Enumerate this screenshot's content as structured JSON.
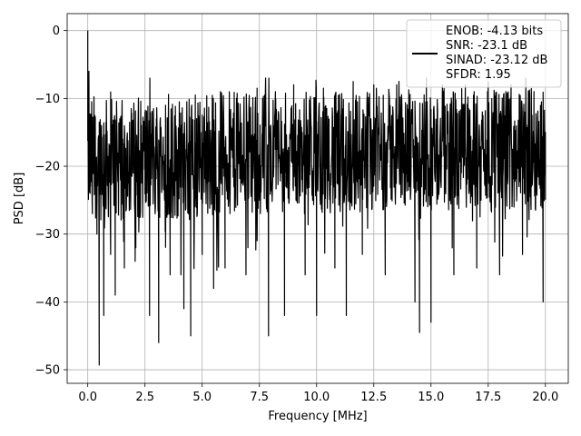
{
  "chart_data": {
    "type": "line",
    "xlabel": "Frequency [MHz]",
    "ylabel": "PSD [dB]",
    "xlim": [
      -0.9,
      21.0
    ],
    "ylim": [
      -52.0,
      2.5
    ],
    "x_ticks": [
      0.0,
      2.5,
      5.0,
      7.5,
      10.0,
      12.5,
      15.0,
      17.5,
      20.0
    ],
    "x_tick_labels": [
      "0.0",
      "2.5",
      "5.0",
      "7.5",
      "10.0",
      "12.5",
      "15.0",
      "17.5",
      "20.0"
    ],
    "y_ticks": [
      0,
      -10,
      -20,
      -30,
      -40,
      -50
    ],
    "y_tick_labels": [
      "0",
      "−10",
      "−20",
      "−30",
      "−40",
      "−50"
    ],
    "grid": true,
    "legend_position": "top-right",
    "series": [
      {
        "color": "#000000",
        "x_start": 0.0,
        "x_end": 20.0,
        "noise_floor_db": -17.5,
        "peak_db": 0.0,
        "min_db": -49.3,
        "points": [
          [
            0.0,
            0.0
          ],
          [
            0.02,
            -17.5
          ],
          [
            0.05,
            -6.0
          ],
          [
            0.1,
            -24.0
          ],
          [
            0.15,
            -14.0
          ],
          [
            0.2,
            -27.0
          ],
          [
            0.3,
            -12.5
          ],
          [
            0.4,
            -30.0
          ],
          [
            0.5,
            -49.3
          ],
          [
            0.6,
            -14.0
          ],
          [
            0.7,
            -42.0
          ],
          [
            0.8,
            -13.5
          ],
          [
            1.0,
            -33.0
          ],
          [
            1.2,
            -39.0
          ],
          [
            1.4,
            -13.0
          ],
          [
            1.6,
            -35.0
          ],
          [
            1.9,
            -11.5
          ],
          [
            2.1,
            -32.0
          ],
          [
            2.5,
            -12.0
          ],
          [
            2.7,
            -42.0
          ],
          [
            3.0,
            -13.0
          ],
          [
            3.1,
            -46.0
          ],
          [
            3.4,
            -11.0
          ],
          [
            3.6,
            -36.0
          ],
          [
            4.0,
            -10.5
          ],
          [
            4.2,
            -41.0
          ],
          [
            4.5,
            -45.0
          ],
          [
            4.7,
            -9.5
          ],
          [
            5.0,
            -33.0
          ],
          [
            5.2,
            -10.0
          ],
          [
            5.5,
            -38.0
          ],
          [
            5.8,
            -9.0
          ],
          [
            6.0,
            -35.0
          ],
          [
            6.5,
            -10.0
          ],
          [
            7.0,
            -32.0
          ],
          [
            7.4,
            -8.5
          ],
          [
            7.9,
            -45.0
          ],
          [
            8.2,
            -9.0
          ],
          [
            8.6,
            -42.0
          ],
          [
            9.0,
            -8.0
          ],
          [
            9.5,
            -36.0
          ],
          [
            10.0,
            -42.0
          ],
          [
            10.3,
            -8.5
          ],
          [
            10.8,
            -35.0
          ],
          [
            11.3,
            -42.0
          ],
          [
            11.6,
            -7.5
          ],
          [
            12.0,
            -33.0
          ],
          [
            12.5,
            -8.0
          ],
          [
            13.0,
            -36.0
          ],
          [
            13.5,
            -8.0
          ],
          [
            14.3,
            -40.0
          ],
          [
            14.5,
            -44.5
          ],
          [
            14.8,
            -7.0
          ],
          [
            15.0,
            -43.0
          ],
          [
            15.5,
            -8.0
          ],
          [
            16.0,
            -36.0
          ],
          [
            16.5,
            -8.0
          ],
          [
            17.0,
            -35.0
          ],
          [
            17.5,
            -7.5
          ],
          [
            18.0,
            -36.0
          ],
          [
            18.5,
            -8.0
          ],
          [
            19.0,
            -33.0
          ],
          [
            19.5,
            -9.0
          ],
          [
            19.9,
            -40.0
          ],
          [
            20.0,
            -15.0
          ]
        ]
      }
    ],
    "legend": {
      "lines": [
        "ENOB: -4.13 bits",
        "SNR: -23.1 dB",
        "SINAD: -23.12 dB",
        "SFDR: 1.95"
      ]
    }
  }
}
